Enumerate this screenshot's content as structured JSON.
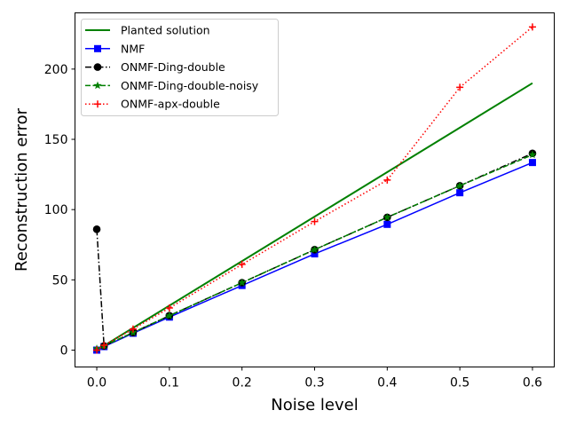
{
  "chart_data": {
    "type": "line",
    "title": "",
    "xlabel": "Noise level",
    "ylabel": "Reconstruction error",
    "xlim": [
      -0.03,
      0.63
    ],
    "ylim": [
      -12,
      240
    ],
    "xticks": [
      0.0,
      0.1,
      0.2,
      0.3,
      0.4,
      0.5,
      0.6
    ],
    "xtick_labels": [
      "0.0",
      "0.1",
      "0.2",
      "0.3",
      "0.4",
      "0.5",
      "0.6"
    ],
    "yticks": [
      0,
      50,
      100,
      150,
      200
    ],
    "ytick_labels": [
      "0",
      "50",
      "100",
      "150",
      "200"
    ],
    "grid": false,
    "legend_position": "top-left",
    "series": [
      {
        "name": "Planted solution",
        "color": "#008000",
        "line_style": "solid",
        "marker": "none",
        "x": [
          0.0,
          0.6
        ],
        "y": [
          0,
          190
        ]
      },
      {
        "name": "NMF",
        "color": "#0000ff",
        "line_style": "solid",
        "marker": "square",
        "x": [
          0.0,
          0.01,
          0.05,
          0.1,
          0.2,
          0.3,
          0.4,
          0.5,
          0.6
        ],
        "y": [
          0,
          2.5,
          12,
          23.5,
          46,
          68.5,
          89.5,
          112,
          133.5
        ]
      },
      {
        "name": "ONMF-Ding-double",
        "color": "#000000",
        "line_style": "dashdot",
        "marker": "circle",
        "x": [
          0.0,
          0.01,
          0.05,
          0.1,
          0.2,
          0.3,
          0.4,
          0.5,
          0.6
        ],
        "y": [
          86,
          3,
          12.5,
          24.5,
          48,
          71.5,
          94.5,
          117,
          140
        ]
      },
      {
        "name": "ONMF-Ding-double-noisy",
        "color": "#008000",
        "line_style": "dashed",
        "marker": "star",
        "x": [
          0.0,
          0.01,
          0.05,
          0.1,
          0.2,
          0.3,
          0.4,
          0.5,
          0.6
        ],
        "y": [
          1,
          3,
          12.5,
          24.5,
          48,
          71.5,
          94.5,
          117,
          139
        ]
      },
      {
        "name": "ONMF-apx-double",
        "color": "#ff0000",
        "line_style": "dotted",
        "marker": "plus",
        "x": [
          0.0,
          0.01,
          0.05,
          0.1,
          0.2,
          0.3,
          0.4,
          0.5,
          0.6
        ],
        "y": [
          0,
          3.5,
          15,
          30,
          61,
          91.5,
          121,
          187,
          230
        ]
      }
    ]
  }
}
